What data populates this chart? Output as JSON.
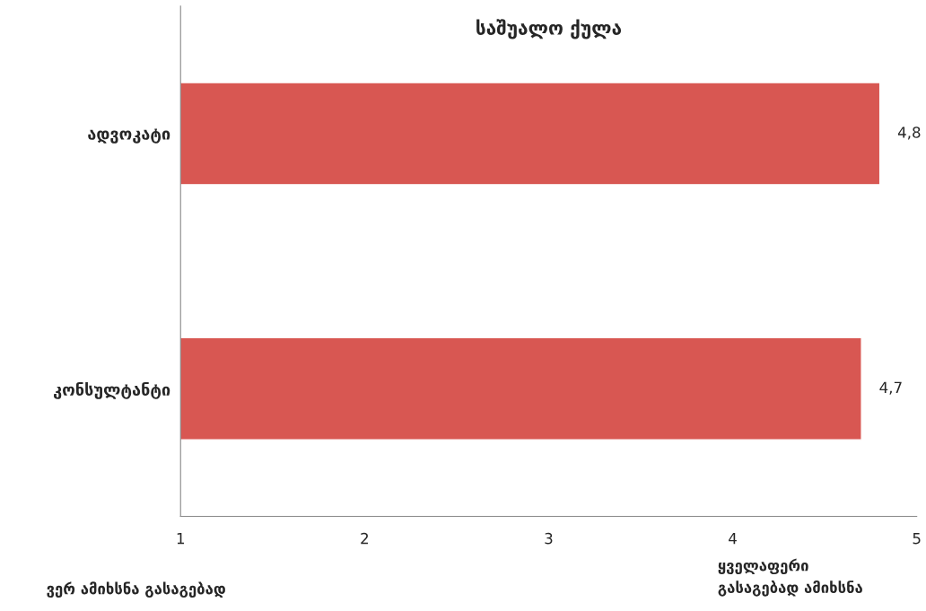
{
  "chart_data": {
    "type": "bar",
    "orientation": "horizontal",
    "title": "საშუალო ქულა",
    "categories": [
      "ადვოკატი",
      "კონსულტანტი"
    ],
    "values": [
      4.8,
      4.7
    ],
    "value_labels": [
      "4,8",
      "4,7"
    ],
    "color": "#d85752",
    "xlim": [
      1,
      5
    ],
    "xticks": [
      1,
      2,
      3,
      4,
      5
    ],
    "grid": false,
    "annotations": [
      "ვერ ამიხსნა გასაგებად",
      "ყველაფერი\nგასაგებად ამიხსნა"
    ]
  }
}
